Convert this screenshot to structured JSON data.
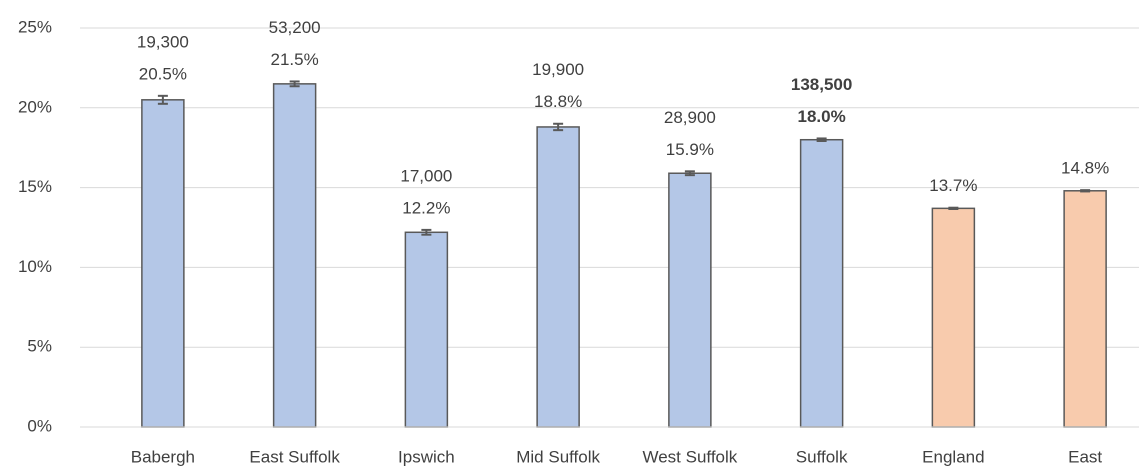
{
  "chart_data": {
    "type": "bar",
    "categories": [
      "Babergh",
      "East Suffolk",
      "Ipswich",
      "Mid Suffolk",
      "West Suffolk",
      "Suffolk",
      "England",
      "East"
    ],
    "values": [
      20.5,
      21.5,
      12.2,
      18.8,
      15.9,
      18.0,
      13.7,
      14.8
    ],
    "value_labels": [
      "20.5%",
      "21.5%",
      "12.2%",
      "18.8%",
      "15.9%",
      "18.0%",
      "13.7%",
      "14.8%"
    ],
    "errors": [
      0.25,
      0.15,
      0.15,
      0.2,
      0.12,
      0.08,
      0.04,
      0.04
    ],
    "count_labels": [
      "19,300",
      "53,200",
      "17,000",
      "19,900",
      "28,900",
      "138,500",
      null,
      null
    ],
    "colors": [
      "#b4c7e7",
      "#b4c7e7",
      "#b4c7e7",
      "#b4c7e7",
      "#b4c7e7",
      "#b4c7e7",
      "#f8cbad",
      "#f8cbad"
    ],
    "bold_index": 5,
    "ylim": [
      0,
      25
    ],
    "yticks": [
      {
        "value": 0,
        "label": "0%"
      },
      {
        "value": 5,
        "label": "5%"
      },
      {
        "value": 10,
        "label": "10%"
      },
      {
        "value": 15,
        "label": "15%"
      },
      {
        "value": 20,
        "label": "20%"
      },
      {
        "value": 25,
        "label": "25%"
      }
    ],
    "grid": true
  }
}
